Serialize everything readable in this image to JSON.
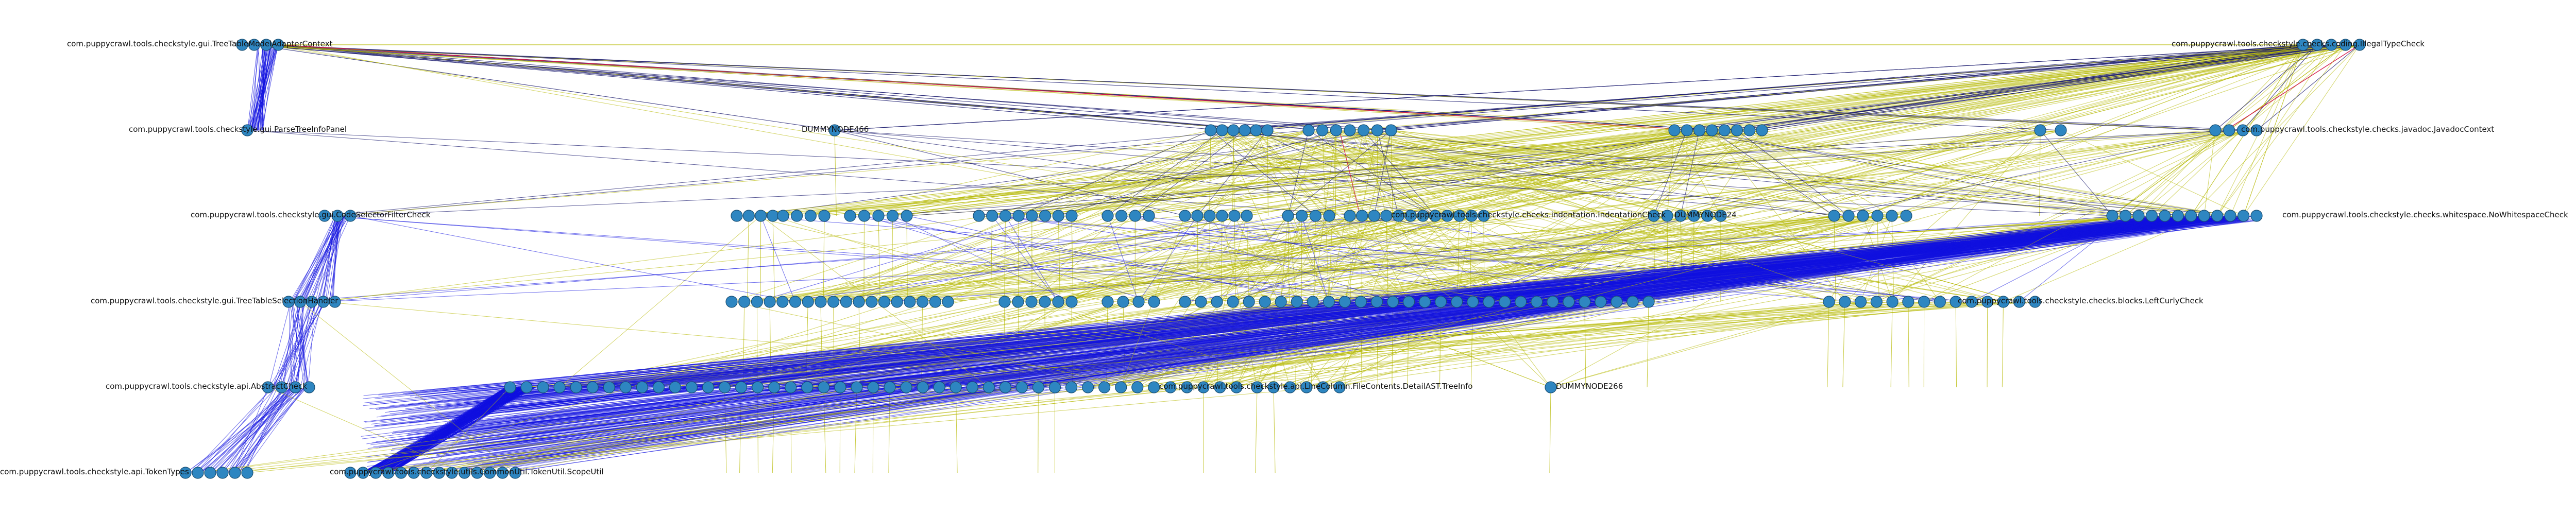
{
  "diagram": {
    "type": "layered-dependency-graph",
    "colors": {
      "node_fill": "#2e86c1",
      "edge_yellow": "#b5b800",
      "edge_blue": "#1010e0",
      "edge_navy": "#1a1a6e",
      "edge_red": "#d21446",
      "label": "#111111"
    },
    "labels": {
      "top_left": "com.puppycrawl.tools.checkstyle.gui.TreeTableModelAdapterContext",
      "top_right": "com.puppycrawl.tools.checkstyle.checks.coding.IllegalTypeCheck",
      "parse_tree_panel": "com.puppycrawl.tools.checkstyle.gui.ParseTreeInfoPanel",
      "dummy_466": "DUMMYNODE466",
      "javadoc_context": "com.puppycrawl.tools.checkstyle.checks.javadoc.JavadocContext",
      "row3_left": "com.puppycrawl.tools.checkstyle.gui.CodeSelectorFilterCheck",
      "row3_mid": "com.puppycrawl.tools.checkstyle.checks.indentation.IndentationCheck",
      "row3_dummy": "DUMMYNODE24",
      "row3_right": "com.puppycrawl.tools.checkstyle.checks.whitespace.NoWhitespaceCheck",
      "row4_left": "com.puppycrawl.tools.checkstyle.gui.TreeTableSelectionHandler",
      "row4_right": "com.puppycrawl.tools.checkstyle.checks.blocks.LeftCurlyCheck",
      "row5_left": "com.puppycrawl.tools.checkstyle.api.AbstractCheck",
      "row5_right": "com.puppycrawl.tools.checkstyle.api.LineColumn.FileContents.DetailAST.TreeInfo",
      "dummy_266": "DUMMYNODE266",
      "bottom_left": "com.puppycrawl.tools.checkstyle.api.TokenTypes",
      "bottom_mid": "com.puppycrawl.tools.checkstyle.utils.CommonUtil.TokenUtil.ScopeUtil"
    }
  }
}
